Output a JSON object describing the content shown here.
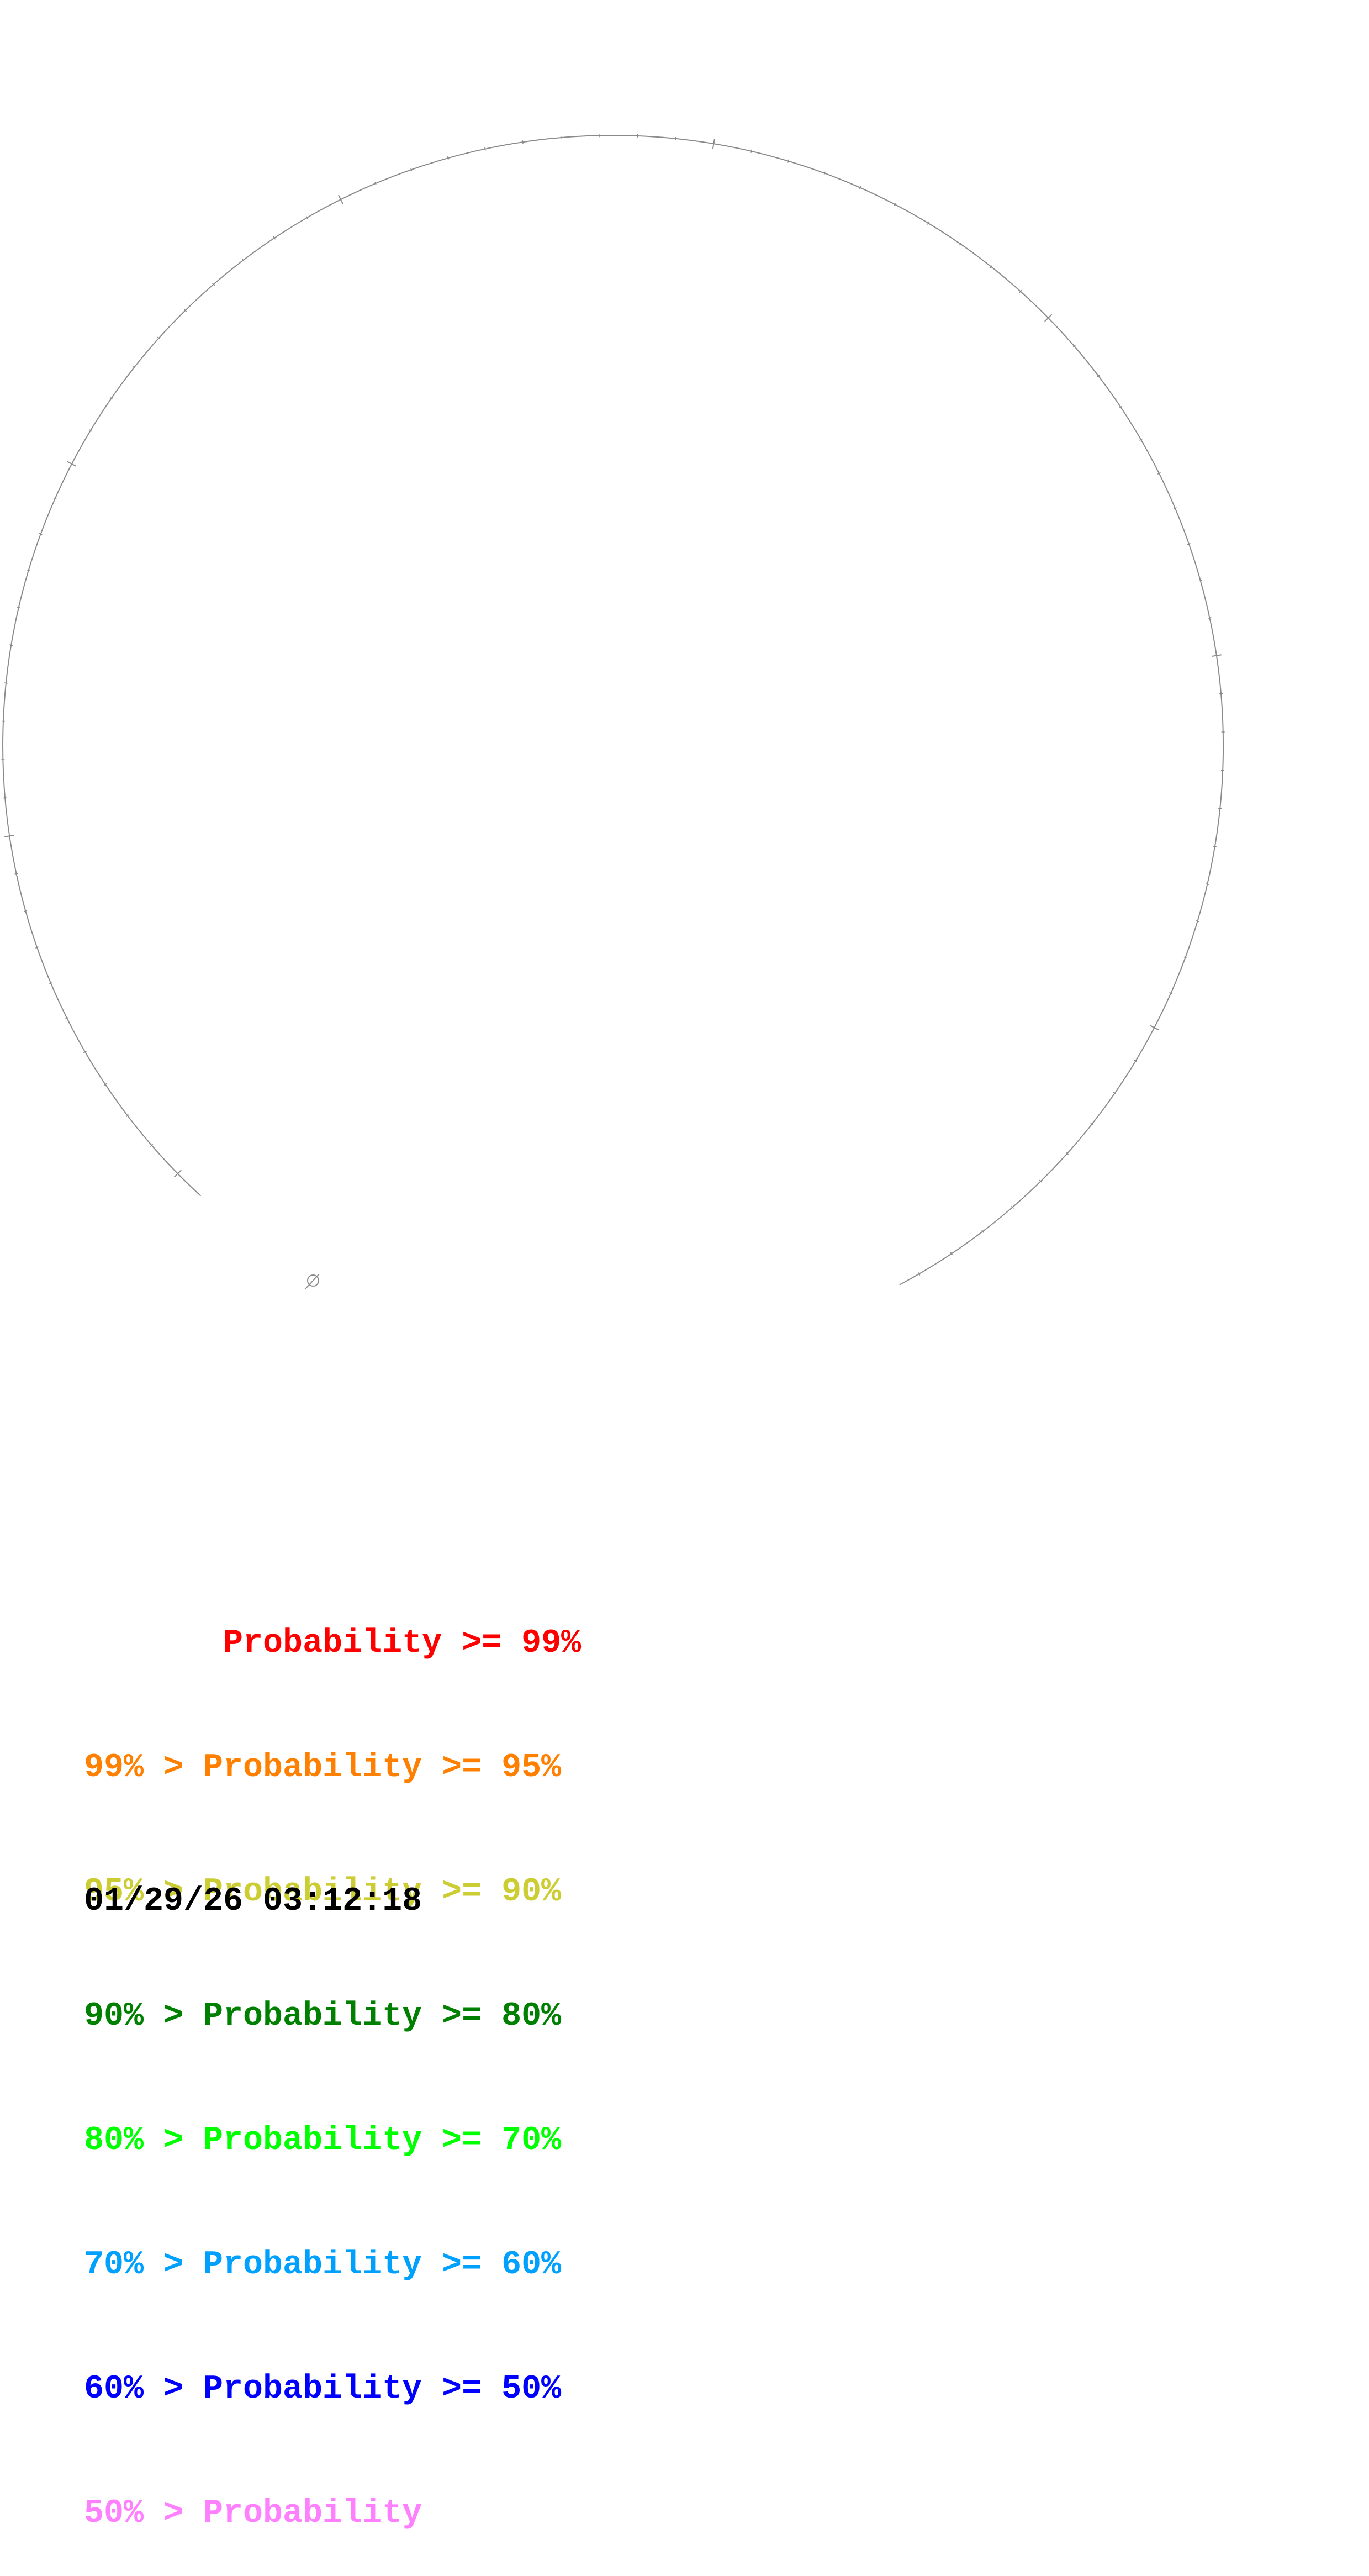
{
  "diagram": {
    "backbone_color": "#8a8a8a",
    "start_marker_icon": "circle-arrow-icon"
  },
  "legend": {
    "rows": [
      {
        "text": "       Probability >= 99%",
        "color": "#ff0000"
      },
      {
        "text": "99% > Probability >= 95%",
        "color": "#ff8000"
      },
      {
        "text": "95% > Probability >= 90%",
        "color": "#cccc33"
      },
      {
        "text": "90% > Probability >= 80%",
        "color": "#008000"
      },
      {
        "text": "80% > Probability >= 70%",
        "color": "#00ff00"
      },
      {
        "text": "70% > Probability >= 60%",
        "color": "#00a0ff"
      },
      {
        "text": "60% > Probability >= 50%",
        "color": "#0000ff"
      },
      {
        "text": "50% > Probability",
        "color": "#ff80ff"
      }
    ]
  },
  "timestamp": "01/29/26 03:12:18"
}
